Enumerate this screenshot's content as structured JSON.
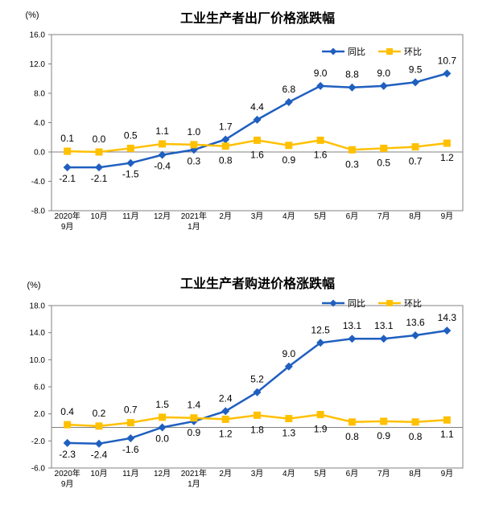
{
  "chart_data": [
    {
      "type": "line",
      "title": "工业生产者出厂价格涨跌幅",
      "unit_label": "(%)",
      "categories": [
        "2020年\n9月",
        "10月",
        "11月",
        "12月",
        "2021年\n1月",
        "2月",
        "3月",
        "4月",
        "5月",
        "6月",
        "7月",
        "8月",
        "9月"
      ],
      "ylim": [
        -8.0,
        16.0
      ],
      "yticks": [
        "16.0",
        "12.0",
        "8.0",
        "4.0",
        "0.0",
        "-4.0",
        "-8.0"
      ],
      "legend_position": "top-right",
      "grid": false,
      "series": [
        {
          "name": "同比",
          "color": "#1F5FBF",
          "marker": "diamond",
          "values": [
            -2.1,
            -2.1,
            -1.5,
            -0.4,
            0.3,
            1.7,
            4.4,
            6.8,
            9.0,
            8.8,
            9.0,
            9.5,
            10.7
          ],
          "labels": [
            "-2.1",
            "-2.1",
            "-1.5",
            "-0.4",
            "0.3",
            "1.7",
            "4.4",
            "6.8",
            "9.0",
            "8.8",
            "9.0",
            "9.5",
            "10.7"
          ]
        },
        {
          "name": "环比",
          "color": "#FFC000",
          "marker": "square",
          "values": [
            0.1,
            0.0,
            0.5,
            1.1,
            1.0,
            0.8,
            1.6,
            0.9,
            1.6,
            0.3,
            0.5,
            0.7,
            1.2
          ],
          "labels": [
            "0.1",
            "0.0",
            "0.5",
            "1.1",
            "1.0",
            "0.8",
            "1.6",
            "0.9",
            "1.6",
            "0.3",
            "0.5",
            "0.7",
            "1.2"
          ]
        }
      ]
    },
    {
      "type": "line",
      "title": "工业生产者购进价格涨跌幅",
      "unit_label": "(%)",
      "categories": [
        "2020年\n9月",
        "10月",
        "11月",
        "12月",
        "2021年\n1月",
        "2月",
        "3月",
        "4月",
        "5月",
        "6月",
        "7月",
        "8月",
        "9月"
      ],
      "ylim": [
        -6.0,
        18.0
      ],
      "yticks": [
        "18.0",
        "14.0",
        "10.0",
        "6.0",
        "2.0",
        "-2.0",
        "-6.0"
      ],
      "legend_position": "top-right",
      "grid": false,
      "series": [
        {
          "name": "同比",
          "color": "#1F5FBF",
          "marker": "diamond",
          "values": [
            -2.3,
            -2.4,
            -1.6,
            0.0,
            0.9,
            2.4,
            5.2,
            9.0,
            12.5,
            13.1,
            13.1,
            13.6,
            14.3
          ],
          "labels": [
            "-2.3",
            "-2.4",
            "-1.6",
            "0.0",
            "0.9",
            "2.4",
            "5.2",
            "9.0",
            "12.5",
            "13.1",
            "13.1",
            "13.6",
            "14.3"
          ]
        },
        {
          "name": "环比",
          "color": "#FFC000",
          "marker": "square",
          "values": [
            0.4,
            0.2,
            0.7,
            1.5,
            1.4,
            1.2,
            1.8,
            1.3,
            1.9,
            0.8,
            0.9,
            0.8,
            1.1
          ],
          "labels": [
            "0.4",
            "0.2",
            "0.7",
            "1.5",
            "1.4",
            "1.2",
            "1.8",
            "1.3",
            "1.9",
            "0.8",
            "0.9",
            "0.8",
            "1.1"
          ]
        }
      ]
    }
  ]
}
